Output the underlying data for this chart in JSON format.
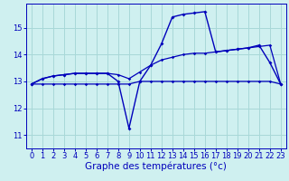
{
  "background_color": "#cff0f0",
  "grid_color": "#a8d8d8",
  "line_color": "#0000bb",
  "xlabel": "Graphe des températures (°c)",
  "xlabel_fontsize": 7.5,
  "tick_fontsize": 6,
  "yticks": [
    11,
    12,
    13,
    14,
    15
  ],
  "xticks": [
    0,
    1,
    2,
    3,
    4,
    5,
    6,
    7,
    8,
    9,
    10,
    11,
    12,
    13,
    14,
    15,
    16,
    17,
    18,
    19,
    20,
    21,
    22,
    23
  ],
  "xlim": [
    -0.5,
    23.5
  ],
  "ylim": [
    10.5,
    15.9
  ],
  "series1_x": [
    0,
    1,
    2,
    3,
    4,
    5,
    6,
    7,
    8,
    9,
    10,
    11,
    12,
    13,
    14,
    15,
    16,
    17,
    18,
    19,
    20,
    21,
    22,
    23
  ],
  "series1_y": [
    12.9,
    12.9,
    12.9,
    12.9,
    12.9,
    12.9,
    12.9,
    12.9,
    12.9,
    12.9,
    13.0,
    13.0,
    13.0,
    13.0,
    13.0,
    13.0,
    13.0,
    13.0,
    13.0,
    13.0,
    13.0,
    13.0,
    13.0,
    12.9
  ],
  "series2_x": [
    0,
    1,
    2,
    3,
    4,
    5,
    6,
    7,
    8,
    9,
    10,
    11,
    12,
    13,
    14,
    15,
    16,
    17,
    18,
    19,
    20,
    21,
    22,
    23
  ],
  "series2_y": [
    12.9,
    13.1,
    13.2,
    13.25,
    13.3,
    13.3,
    13.3,
    13.3,
    13.25,
    13.1,
    13.35,
    13.6,
    13.8,
    13.9,
    14.0,
    14.05,
    14.05,
    14.1,
    14.15,
    14.2,
    14.25,
    14.3,
    14.35,
    12.9
  ],
  "series3_x": [
    0,
    1,
    2,
    3,
    4,
    5,
    6,
    7,
    8,
    9,
    10,
    11,
    12,
    13,
    14,
    15,
    16,
    17,
    18,
    19,
    20,
    21,
    22,
    23
  ],
  "series3_y": [
    12.9,
    13.1,
    13.2,
    13.25,
    13.3,
    13.3,
    13.3,
    13.3,
    13.0,
    11.25,
    13.0,
    13.6,
    14.4,
    15.4,
    15.5,
    15.55,
    15.6,
    14.1,
    14.15,
    14.2,
    14.25,
    14.35,
    13.7,
    12.9
  ]
}
